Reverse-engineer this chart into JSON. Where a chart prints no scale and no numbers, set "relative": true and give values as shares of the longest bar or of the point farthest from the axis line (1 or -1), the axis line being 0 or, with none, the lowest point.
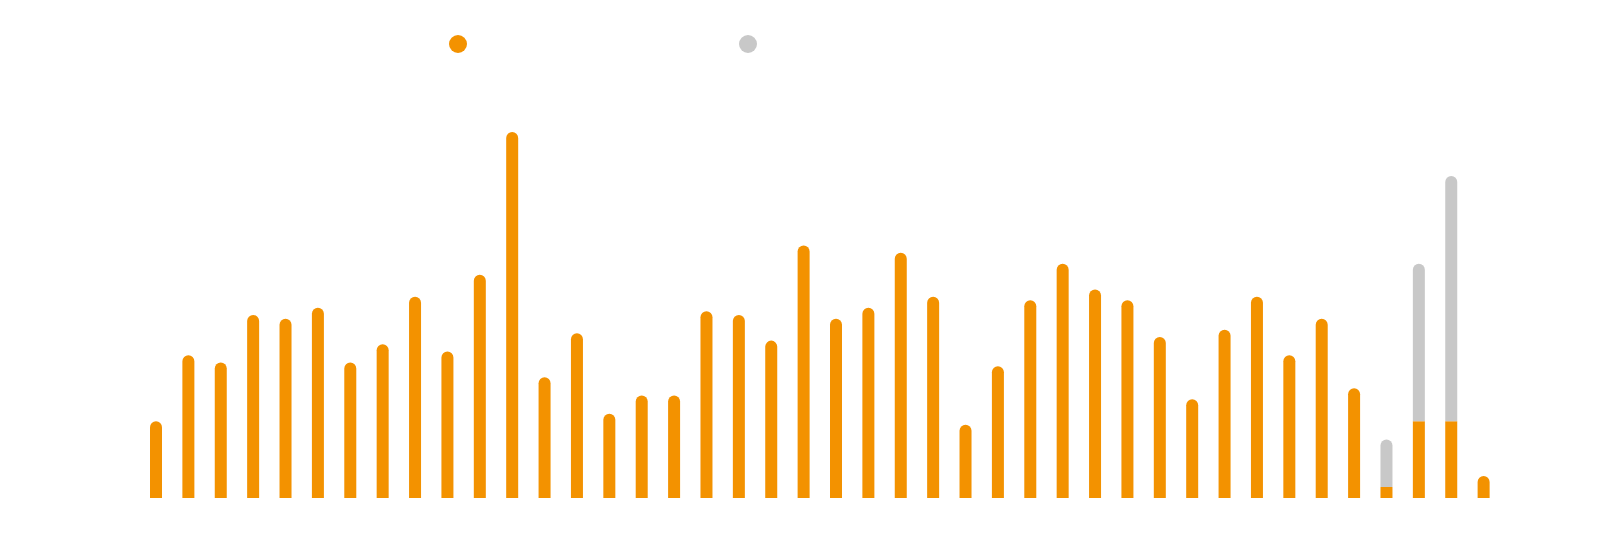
{
  "chart_data": {
    "type": "bar",
    "stacked": true,
    "relative": true,
    "categories": [
      null,
      null,
      null,
      null,
      null,
      null,
      null,
      null,
      null,
      null,
      null,
      null,
      null,
      null,
      null,
      null,
      null,
      null,
      null,
      null,
      null,
      null,
      null,
      null,
      null,
      null,
      null,
      null,
      null,
      null,
      null,
      null,
      null,
      null,
      null,
      null,
      null,
      null,
      null,
      null,
      null,
      null
    ],
    "series": [
      {
        "color": "#f39200",
        "values": [
          0.21,
          0.39,
          0.37,
          0.5,
          0.49,
          0.52,
          0.37,
          0.42,
          0.55,
          0.4,
          0.61,
          1,
          0.33,
          0.45,
          0.23,
          0.28,
          0.28,
          0.51,
          0.5,
          0.43,
          0.69,
          0.49,
          0.52,
          0.67,
          0.55,
          0.2,
          0.36,
          0.54,
          0.64,
          0.57,
          0.54,
          0.44,
          0.27,
          0.46,
          0.55,
          0.39,
          0.49,
          0.3,
          0.03,
          0.21,
          0.21,
          0.06
        ]
      },
      {
        "color": "#c8c8c8",
        "values": [
          null,
          null,
          null,
          null,
          null,
          null,
          null,
          null,
          null,
          null,
          null,
          null,
          null,
          null,
          null,
          null,
          null,
          null,
          null,
          null,
          null,
          null,
          null,
          null,
          null,
          null,
          null,
          null,
          null,
          null,
          null,
          null,
          null,
          null,
          null,
          null,
          null,
          null,
          0.13,
          0.43,
          0.67,
          null
        ]
      }
    ]
  }
}
